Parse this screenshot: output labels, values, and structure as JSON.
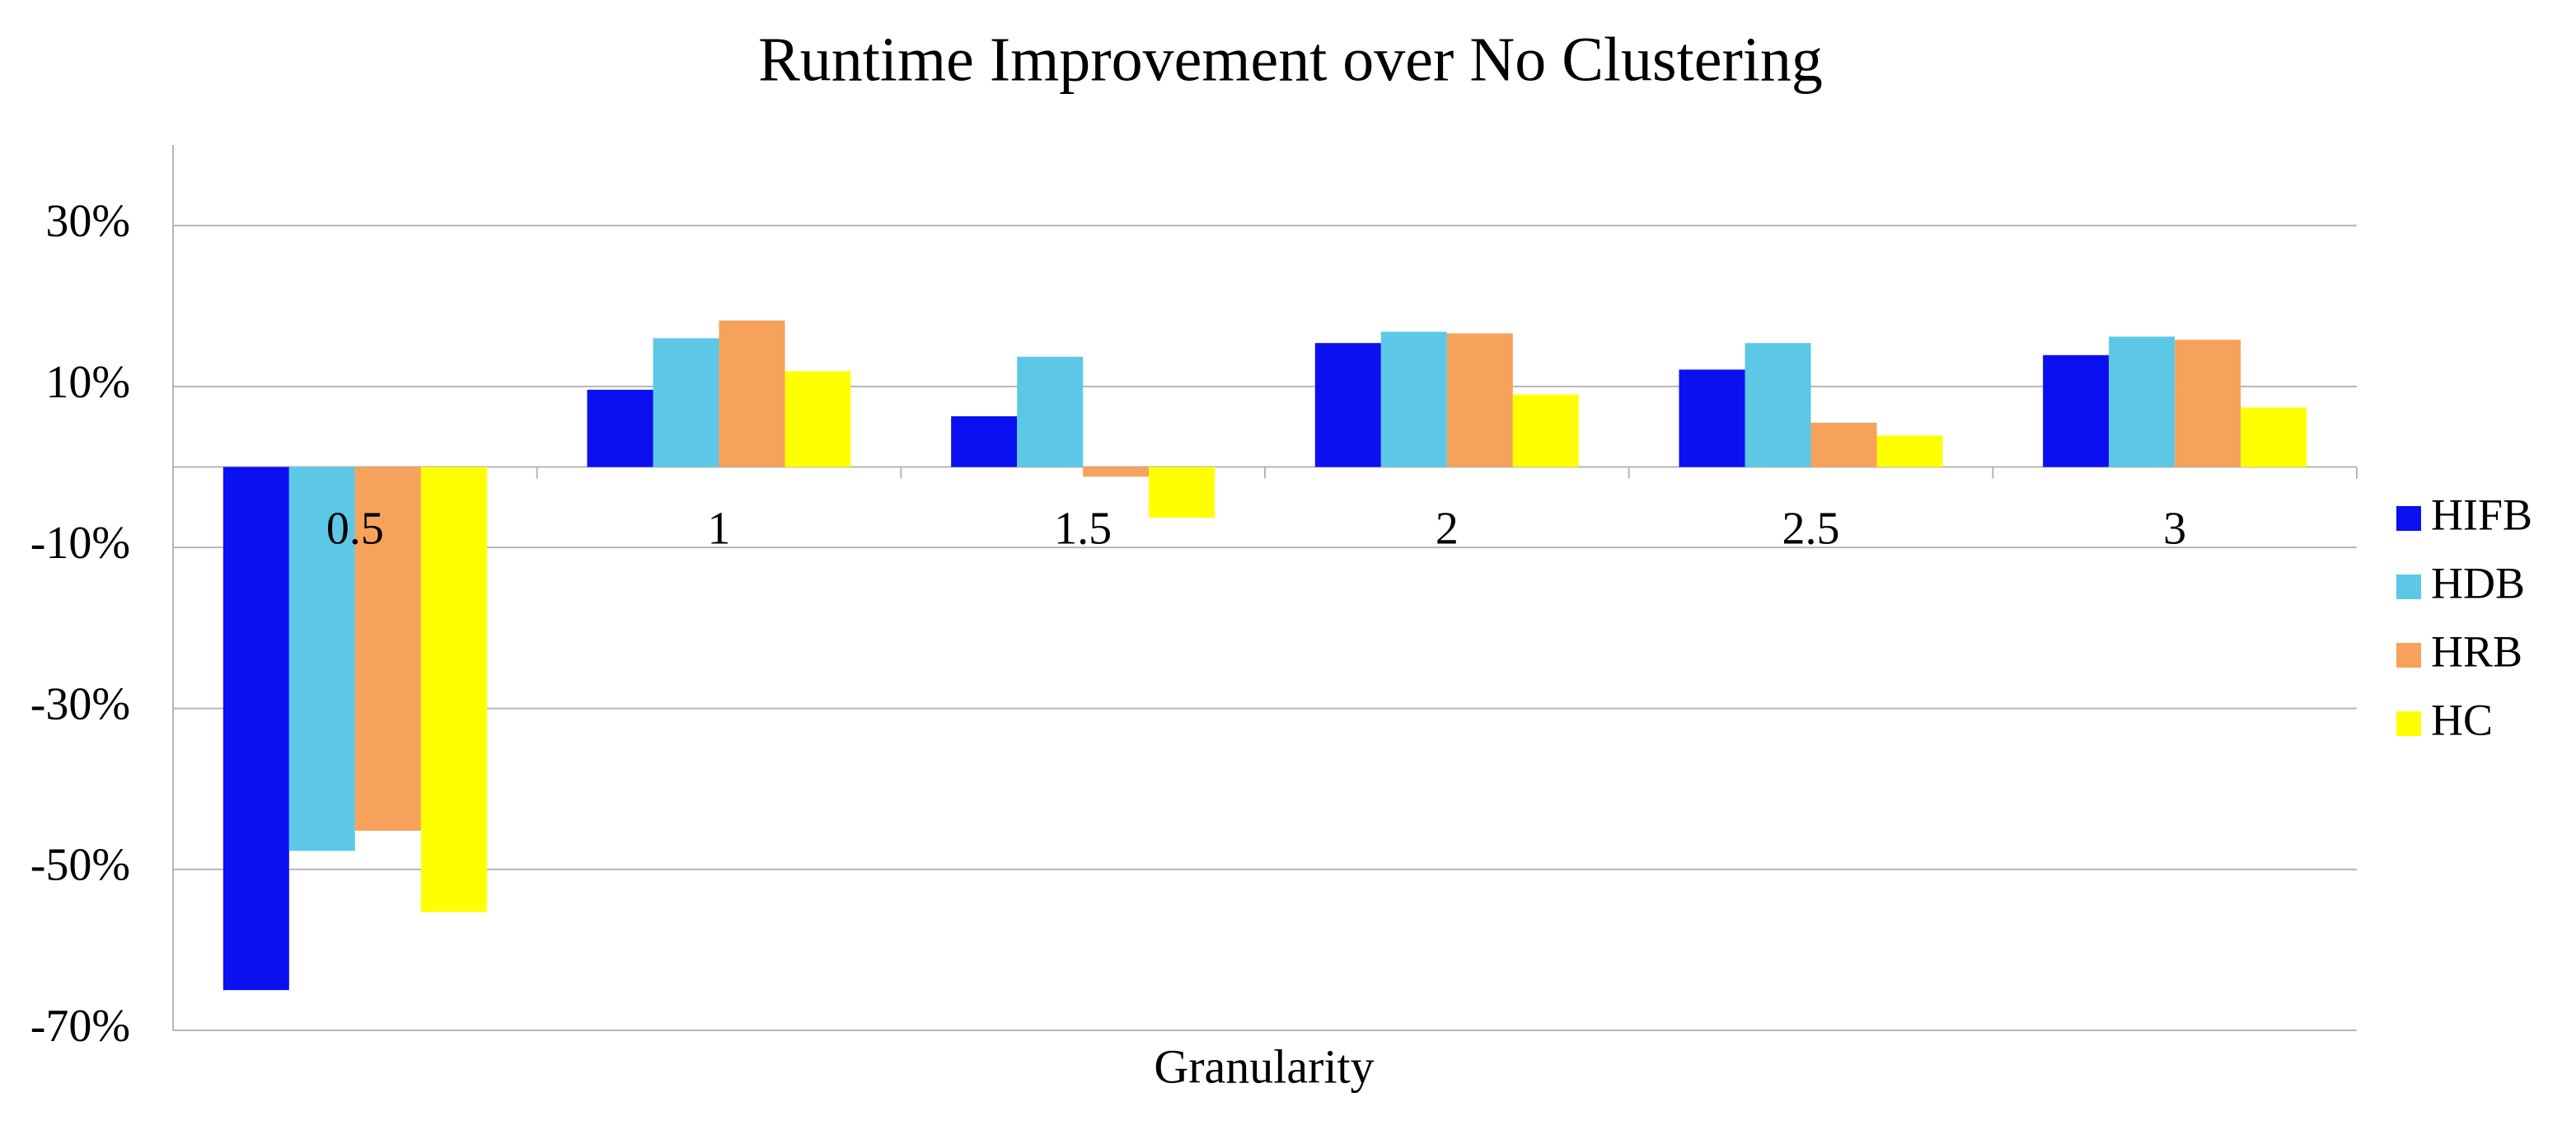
{
  "chart_data": {
    "type": "bar",
    "title": "Runtime Improvement over No Clustering",
    "x_label": "Granularity",
    "categories": [
      "0.5",
      "1",
      "1.5",
      "2",
      "2.5",
      "3"
    ],
    "series": [
      {
        "name": "HIFB",
        "color": "#0a10f0",
        "values": [
          -65,
          9.6,
          6.3,
          15.4,
          12.1,
          13.9
        ]
      },
      {
        "name": "HDB",
        "color": "#5cc8e6",
        "values": [
          -47.7,
          16,
          13.7,
          16.8,
          15.4,
          16.2
        ]
      },
      {
        "name": "HRB",
        "color": "#f6a25a",
        "values": [
          -45.2,
          18.2,
          -1.2,
          16.6,
          5.5,
          15.8
        ]
      },
      {
        "name": "HC",
        "color": "#ffff00",
        "values": [
          -55.3,
          11.9,
          -6.3,
          9,
          3.9,
          7.4
        ]
      }
    ],
    "ylim": [
      -70,
      40
    ],
    "yticks": [
      {
        "value": -70,
        "label": "-70%"
      },
      {
        "value": -50,
        "label": "-50%"
      },
      {
        "value": -30,
        "label": "-30%"
      },
      {
        "value": -10,
        "label": "-10%"
      },
      {
        "value": 10,
        "label": "10%"
      },
      {
        "value": 30,
        "label": "30%"
      }
    ],
    "grid": true,
    "legend": "right"
  }
}
